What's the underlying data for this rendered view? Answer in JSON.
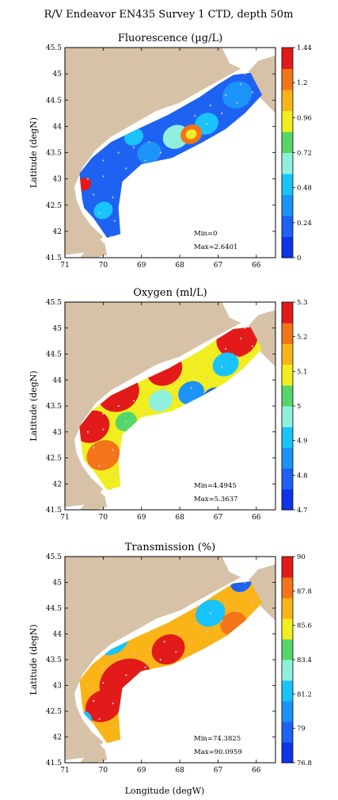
{
  "figure": {
    "title": "R/V Endeavor EN435 Survey 1 CTD, depth 50m"
  },
  "colors": {
    "land": "#D7C2A8",
    "station": "#C9C9C9",
    "frame": "#000000"
  },
  "chart_data": [
    {
      "type": "heatmap",
      "title": "Fluorescence (µg/L)",
      "xlabel": "",
      "ylabel": "Latitude (degN)",
      "xlim": [
        71,
        65.5
      ],
      "ylim": [
        41.5,
        45.5
      ],
      "x_ticks": [
        "71",
        "70",
        "69",
        "68",
        "67",
        "66"
      ],
      "y_ticks": [
        "41.5",
        "42",
        "42.5",
        "43",
        "43.5",
        "44",
        "44.5",
        "45",
        "45.5"
      ],
      "colorbar": {
        "min": 0,
        "max": 1.44,
        "ticks": [
          "1.44",
          "1.2",
          "0.96",
          "0.72",
          "0.48",
          "0.24",
          "0"
        ],
        "colors": [
          "#0F33E6",
          "#1E62F2",
          "#1C93F8",
          "#19C3FB",
          "#8FF0DE",
          "#55D66A",
          "#F0EE20",
          "#FAB418",
          "#F4741A",
          "#E21A1A"
        ]
      },
      "stats": {
        "min_label": "Min=0",
        "max_label": "Max=2.6401"
      },
      "field": {
        "background_level": 1,
        "blobs": [
          {
            "lon": 70.5,
            "lat": 42.9,
            "level": 9,
            "r": 0.12
          },
          {
            "lon": 67.7,
            "lat": 43.85,
            "level": 8,
            "r": 0.18
          },
          {
            "lon": 67.7,
            "lat": 43.85,
            "level": 6,
            "r": 0.09
          },
          {
            "lon": 68.1,
            "lat": 43.8,
            "level": 4,
            "r": 0.22
          },
          {
            "lon": 67.3,
            "lat": 44.05,
            "level": 3,
            "r": 0.2
          },
          {
            "lon": 69.2,
            "lat": 43.8,
            "level": 3,
            "r": 0.16
          },
          {
            "lon": 70.0,
            "lat": 42.4,
            "level": 3,
            "r": 0.16
          },
          {
            "lon": 66.5,
            "lat": 44.6,
            "level": 2,
            "r": 0.25
          },
          {
            "lon": 68.8,
            "lat": 43.5,
            "level": 2,
            "r": 0.2
          }
        ]
      }
    },
    {
      "type": "heatmap",
      "title": "Oxygen (ml/L)",
      "xlabel": "",
      "ylabel": "Latitude (degN)",
      "xlim": [
        71,
        65.5
      ],
      "ylim": [
        41.5,
        45.5
      ],
      "x_ticks": [
        "71",
        "70",
        "69",
        "68",
        "67",
        "66"
      ],
      "y_ticks": [
        "41.5",
        "42",
        "42.5",
        "43",
        "43.5",
        "44",
        "44.5",
        "45",
        "45.5"
      ],
      "colorbar": {
        "min": 4.7,
        "max": 5.3,
        "ticks": [
          "5.3",
          "5.2",
          "5.1",
          "5",
          "4.9",
          "4.8",
          "4.7"
        ],
        "colors": [
          "#0F33E6",
          "#1E62F2",
          "#1C93F8",
          "#19C3FB",
          "#8FF0DE",
          "#55D66A",
          "#F0EE20",
          "#FAB418",
          "#F4741A",
          "#E21A1A"
        ]
      },
      "stats": {
        "min_label": "Min=4.4945",
        "max_label": "Max=5.3637"
      },
      "field": {
        "background_level": 6,
        "blobs": [
          {
            "lon": 69.6,
            "lat": 43.75,
            "level": 9,
            "r": 0.35
          },
          {
            "lon": 70.3,
            "lat": 43.1,
            "level": 9,
            "r": 0.3
          },
          {
            "lon": 68.4,
            "lat": 44.2,
            "level": 9,
            "r": 0.3
          },
          {
            "lon": 66.5,
            "lat": 44.8,
            "level": 9,
            "r": 0.35
          },
          {
            "lon": 70.0,
            "lat": 42.55,
            "level": 8,
            "r": 0.28
          },
          {
            "lon": 67.7,
            "lat": 43.75,
            "level": 2,
            "r": 0.22
          },
          {
            "lon": 67.1,
            "lat": 43.65,
            "level": 1,
            "r": 0.2
          },
          {
            "lon": 66.8,
            "lat": 44.3,
            "level": 3,
            "r": 0.22
          },
          {
            "lon": 68.5,
            "lat": 43.6,
            "level": 4,
            "r": 0.2
          },
          {
            "lon": 69.4,
            "lat": 43.2,
            "level": 5,
            "r": 0.18
          }
        ]
      }
    },
    {
      "type": "heatmap",
      "title": "Transmission (%)",
      "xlabel": "Longitude (degW)",
      "ylabel": "Latitude (degN)",
      "xlim": [
        71,
        65.5
      ],
      "ylim": [
        41.5,
        45.5
      ],
      "x_ticks": [
        "71",
        "70",
        "69",
        "68",
        "67",
        "66"
      ],
      "y_ticks": [
        "41.5",
        "42",
        "42.5",
        "43",
        "43.5",
        "44",
        "44.5",
        "45",
        "45.5"
      ],
      "colorbar": {
        "min": 76.8,
        "max": 90,
        "ticks": [
          "90",
          "87.8",
          "85.6",
          "83.4",
          "81.2",
          "79",
          "76.8"
        ],
        "colors": [
          "#0F33E6",
          "#1E62F2",
          "#1C93F8",
          "#19C3FB",
          "#8FF0DE",
          "#55D66A",
          "#F0EE20",
          "#FAB418",
          "#F4741A",
          "#E21A1A"
        ]
      },
      "stats": {
        "min_label": "Min=74.3825",
        "max_label": "Max=90.0959"
      },
      "field": {
        "background_level": 7,
        "blobs": [
          {
            "lon": 69.4,
            "lat": 43.05,
            "level": 9,
            "r": 0.45
          },
          {
            "lon": 70.0,
            "lat": 42.6,
            "level": 9,
            "r": 0.3
          },
          {
            "lon": 68.3,
            "lat": 43.7,
            "level": 9,
            "r": 0.28
          },
          {
            "lon": 69.8,
            "lat": 43.9,
            "level": 3,
            "r": 0.3
          },
          {
            "lon": 70.6,
            "lat": 42.3,
            "level": 3,
            "r": 0.2
          },
          {
            "lon": 67.2,
            "lat": 44.4,
            "level": 3,
            "r": 0.25
          },
          {
            "lon": 66.4,
            "lat": 45.0,
            "level": 1,
            "r": 0.18
          },
          {
            "lon": 66.6,
            "lat": 44.2,
            "level": 8,
            "r": 0.22
          }
        ]
      }
    }
  ]
}
